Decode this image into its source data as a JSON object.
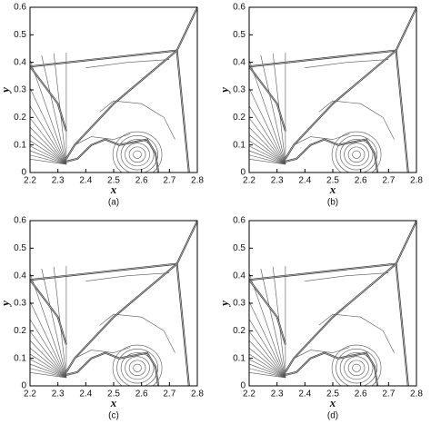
{
  "chart_data": [
    {
      "type": "contour",
      "xlabel": "x",
      "ylabel": "y",
      "caption": "(a)",
      "xlim": [
        2.2,
        2.8
      ],
      "ylim": [
        0,
        0.6
      ],
      "xticks": [
        2.2,
        2.3,
        2.4,
        2.5,
        2.6,
        2.7,
        2.8
      ],
      "yticks": [
        0,
        0.1,
        0.2,
        0.3,
        0.4,
        0.5,
        0.6
      ]
    },
    {
      "type": "contour",
      "xlabel": "x",
      "ylabel": "y",
      "caption": "(b)",
      "xlim": [
        2.2,
        2.8
      ],
      "ylim": [
        0,
        0.6
      ],
      "xticks": [
        2.2,
        2.3,
        2.4,
        2.5,
        2.6,
        2.7,
        2.8
      ],
      "yticks": [
        0,
        0.1,
        0.2,
        0.3,
        0.4,
        0.5,
        0.6
      ]
    },
    {
      "type": "contour",
      "xlabel": "x",
      "ylabel": "y",
      "caption": "(c)",
      "xlim": [
        2.2,
        2.8
      ],
      "ylim": [
        0,
        0.6
      ],
      "xticks": [
        2.2,
        2.3,
        2.4,
        2.5,
        2.6,
        2.7,
        2.8
      ],
      "yticks": [
        0,
        0.1,
        0.2,
        0.3,
        0.4,
        0.5,
        0.6
      ]
    },
    {
      "type": "contour",
      "xlabel": "x",
      "ylabel": "y",
      "caption": "(d)",
      "xlim": [
        2.2,
        2.8
      ],
      "ylim": [
        0,
        0.6
      ],
      "xticks": [
        2.2,
        2.3,
        2.4,
        2.5,
        2.6,
        2.7,
        2.8
      ],
      "yticks": [
        0,
        0.1,
        0.2,
        0.3,
        0.4,
        0.5,
        0.6
      ]
    }
  ]
}
